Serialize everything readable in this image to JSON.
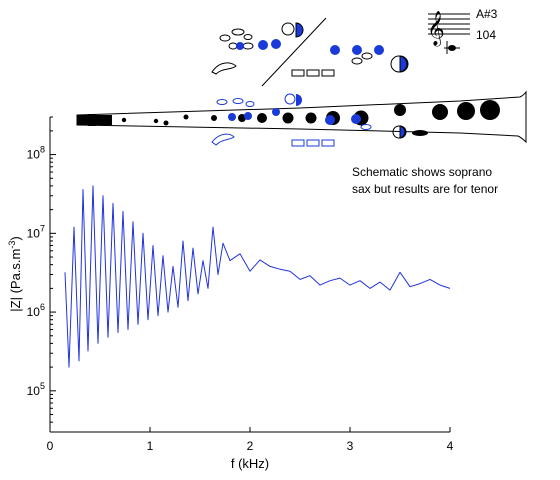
{
  "chart_data": {
    "type": "line",
    "title": "",
    "xlabel": "f (kHz)",
    "ylabel": "|Z| (Pa.s.m",
    "ylabel_superscript": "-3",
    "ylabel_close": ")",
    "xlim": [
      0,
      4
    ],
    "ylim": [
      30000,
      300000000
    ],
    "y_scale": "log",
    "grid": false,
    "x_ticks": [
      0,
      1,
      2,
      3,
      4
    ],
    "x_tick_labels": [
      "0",
      "1",
      "2",
      "3",
      "4"
    ],
    "y_ticks": [
      100000,
      1000000,
      10000000,
      100000000
    ],
    "y_tick_base": [
      "10",
      "10",
      "10",
      "10"
    ],
    "y_tick_exp": [
      "5",
      "6",
      "7",
      "8"
    ],
    "line_color": "#2233dd",
    "annotation": [
      "Schematic shows soprano",
      "sax but results are for tenor"
    ],
    "note_label": "A#3",
    "frequency_label": "104",
    "series": [
      {
        "name": "",
        "x": [
          0.15,
          0.19,
          0.24,
          0.29,
          0.33,
          0.38,
          0.43,
          0.48,
          0.53,
          0.58,
          0.63,
          0.68,
          0.73,
          0.78,
          0.83,
          0.88,
          0.93,
          0.98,
          1.03,
          1.08,
          1.13,
          1.18,
          1.23,
          1.28,
          1.33,
          1.38,
          1.43,
          1.48,
          1.53,
          1.58,
          1.63,
          1.68,
          1.73,
          1.8,
          1.9,
          2.0,
          2.1,
          2.2,
          2.3,
          2.4,
          2.5,
          2.6,
          2.7,
          2.8,
          2.9,
          3.0,
          3.1,
          3.2,
          3.3,
          3.4,
          3.5,
          3.6,
          3.7,
          3.8,
          3.9,
          4.0
        ],
        "y": [
          3200000,
          200000,
          12000000,
          240000,
          36000000,
          320000,
          40000000,
          400000,
          30000000,
          480000,
          24000000,
          550000,
          19000000,
          600000,
          14000000,
          700000,
          10000000,
          800000,
          7000000,
          900000,
          5200000,
          1000000,
          3800000,
          1150000,
          8000000,
          1400000,
          6500000,
          1700000,
          4500000,
          2000000,
          12000000,
          3000000,
          7500000,
          4500000,
          5500000,
          3300000,
          4600000,
          3800000,
          3500000,
          3300000,
          2600000,
          2900000,
          2200000,
          2500000,
          2700000,
          2200000,
          2500000,
          2000000,
          2400000,
          1900000,
          3200000,
          2100000,
          2300000,
          2600000,
          2200000,
          2000000
        ]
      }
    ]
  }
}
